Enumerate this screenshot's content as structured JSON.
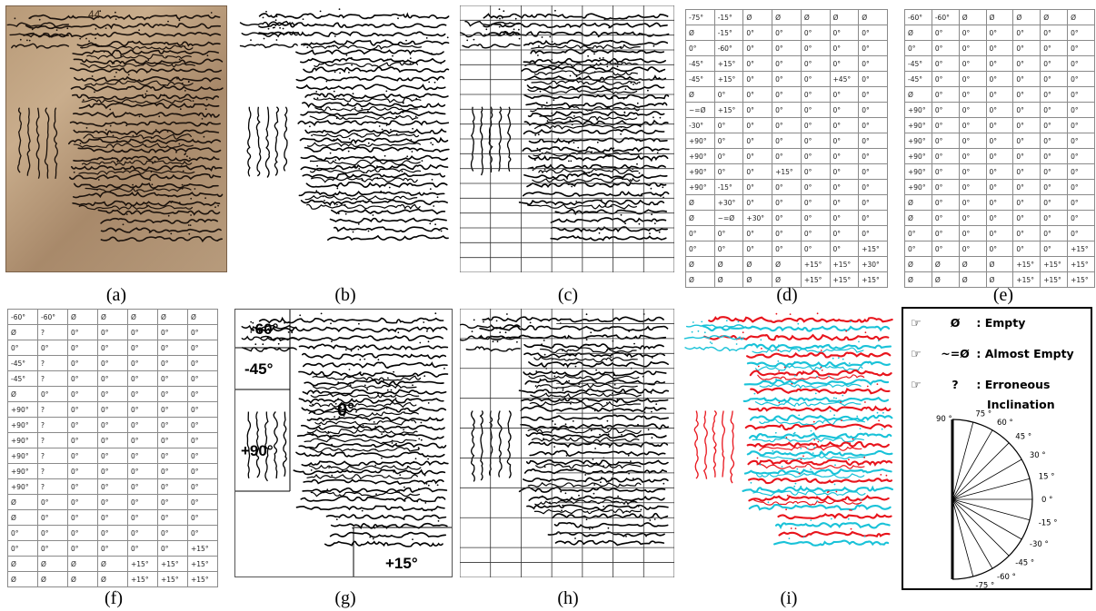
{
  "captions": [
    "(a)",
    "(b)",
    "(c)",
    "(d)",
    "(e)",
    "(f)",
    "(g)",
    "(h)",
    "(i)"
  ],
  "header_note": "44",
  "table_d": [
    [
      "-75°",
      "-15°",
      "Ø",
      "Ø",
      "Ø",
      "Ø",
      "Ø"
    ],
    [
      "Ø",
      "-15°",
      "0°",
      "0°",
      "0°",
      "0°",
      "0°"
    ],
    [
      "0°",
      "-60°",
      "0°",
      "0°",
      "0°",
      "0°",
      "0°"
    ],
    [
      "-45°",
      "+15°",
      "0°",
      "0°",
      "0°",
      "0°",
      "0°"
    ],
    [
      "-45°",
      "+15°",
      "0°",
      "0°",
      "0°",
      "+45°",
      "0°"
    ],
    [
      "Ø",
      "0°",
      "0°",
      "0°",
      "0°",
      "0°",
      "0°"
    ],
    [
      "~=Ø",
      "+15°",
      "0°",
      "0°",
      "0°",
      "0°",
      "0°"
    ],
    [
      "-30°",
      "0°",
      "0°",
      "0°",
      "0°",
      "0°",
      "0°"
    ],
    [
      "+90°",
      "0°",
      "0°",
      "0°",
      "0°",
      "0°",
      "0°"
    ],
    [
      "+90°",
      "0°",
      "0°",
      "0°",
      "0°",
      "0°",
      "0°"
    ],
    [
      "+90°",
      "0°",
      "0°",
      "+15°",
      "0°",
      "0°",
      "0°"
    ],
    [
      "+90°",
      "-15°",
      "0°",
      "0°",
      "0°",
      "0°",
      "0°"
    ],
    [
      "Ø",
      "+30°",
      "0°",
      "0°",
      "0°",
      "0°",
      "0°"
    ],
    [
      "Ø",
      "~=Ø",
      "+30°",
      "0°",
      "0°",
      "0°",
      "0°"
    ],
    [
      "0°",
      "0°",
      "0°",
      "0°",
      "0°",
      "0°",
      "0°"
    ],
    [
      "0°",
      "0°",
      "0°",
      "0°",
      "0°",
      "0°",
      "+15°"
    ],
    [
      "Ø",
      "Ø",
      "Ø",
      "Ø",
      "+15°",
      "+15°",
      "+30°"
    ],
    [
      "Ø",
      "Ø",
      "Ø",
      "Ø",
      "+15°",
      "+15°",
      "+15°"
    ]
  ],
  "table_e": [
    [
      "-60°",
      "-60°",
      "Ø",
      "Ø",
      "Ø",
      "Ø",
      "Ø"
    ],
    [
      "Ø",
      "0°",
      "0°",
      "0°",
      "0°",
      "0°",
      "0°"
    ],
    [
      "0°",
      "0°",
      "0°",
      "0°",
      "0°",
      "0°",
      "0°"
    ],
    [
      "-45°",
      "0°",
      "0°",
      "0°",
      "0°",
      "0°",
      "0°"
    ],
    [
      "-45°",
      "0°",
      "0°",
      "0°",
      "0°",
      "0°",
      "0°"
    ],
    [
      "Ø",
      "0°",
      "0°",
      "0°",
      "0°",
      "0°",
      "0°"
    ],
    [
      "+90°",
      "0°",
      "0°",
      "0°",
      "0°",
      "0°",
      "0°"
    ],
    [
      "+90°",
      "0°",
      "0°",
      "0°",
      "0°",
      "0°",
      "0°"
    ],
    [
      "+90°",
      "0°",
      "0°",
      "0°",
      "0°",
      "0°",
      "0°"
    ],
    [
      "+90°",
      "0°",
      "0°",
      "0°",
      "0°",
      "0°",
      "0°"
    ],
    [
      "+90°",
      "0°",
      "0°",
      "0°",
      "0°",
      "0°",
      "0°"
    ],
    [
      "+90°",
      "0°",
      "0°",
      "0°",
      "0°",
      "0°",
      "0°"
    ],
    [
      "Ø",
      "0°",
      "0°",
      "0°",
      "0°",
      "0°",
      "0°"
    ],
    [
      "Ø",
      "0°",
      "0°",
      "0°",
      "0°",
      "0°",
      "0°"
    ],
    [
      "0°",
      "0°",
      "0°",
      "0°",
      "0°",
      "0°",
      "0°"
    ],
    [
      "0°",
      "0°",
      "0°",
      "0°",
      "0°",
      "0°",
      "+15°"
    ],
    [
      "Ø",
      "Ø",
      "Ø",
      "Ø",
      "+15°",
      "+15°",
      "+15°"
    ],
    [
      "Ø",
      "Ø",
      "Ø",
      "Ø",
      "+15°",
      "+15°",
      "+15°"
    ]
  ],
  "table_f": [
    [
      "-60°",
      "-60°",
      "Ø",
      "Ø",
      "Ø",
      "Ø",
      "Ø"
    ],
    [
      "Ø",
      "?",
      "0°",
      "0°",
      "0°",
      "0°",
      "0°"
    ],
    [
      "0°",
      "0°",
      "0°",
      "0°",
      "0°",
      "0°",
      "0°"
    ],
    [
      "-45°",
      "?",
      "0°",
      "0°",
      "0°",
      "0°",
      "0°"
    ],
    [
      "-45°",
      "?",
      "0°",
      "0°",
      "0°",
      "0°",
      "0°"
    ],
    [
      "Ø",
      "0°",
      "0°",
      "0°",
      "0°",
      "0°",
      "0°"
    ],
    [
      "+90°",
      "?",
      "0°",
      "0°",
      "0°",
      "0°",
      "0°"
    ],
    [
      "+90°",
      "?",
      "0°",
      "0°",
      "0°",
      "0°",
      "0°"
    ],
    [
      "+90°",
      "?",
      "0°",
      "0°",
      "0°",
      "0°",
      "0°"
    ],
    [
      "+90°",
      "?",
      "0°",
      "0°",
      "0°",
      "0°",
      "0°"
    ],
    [
      "+90°",
      "?",
      "0°",
      "0°",
      "0°",
      "0°",
      "0°"
    ],
    [
      "+90°",
      "?",
      "0°",
      "0°",
      "0°",
      "0°",
      "0°"
    ],
    [
      "Ø",
      "0°",
      "0°",
      "0°",
      "0°",
      "0°",
      "0°"
    ],
    [
      "Ø",
      "0°",
      "0°",
      "0°",
      "0°",
      "0°",
      "0°"
    ],
    [
      "0°",
      "0°",
      "0°",
      "0°",
      "0°",
      "0°",
      "0°"
    ],
    [
      "0°",
      "0°",
      "0°",
      "0°",
      "0°",
      "0°",
      "+15°"
    ],
    [
      "Ø",
      "Ø",
      "Ø",
      "Ø",
      "+15°",
      "+15°",
      "+15°"
    ],
    [
      "Ø",
      "Ø",
      "Ø",
      "Ø",
      "+15°",
      "+15°",
      "+15°"
    ]
  ],
  "region_labels": [
    "-60°",
    "-45°",
    "0°",
    "+90°",
    "+15°"
  ],
  "legend": {
    "items": [
      {
        "symbol": "Ø",
        "text": ": Empty"
      },
      {
        "symbol": "~=Ø",
        "text": ": Almost Empty"
      },
      {
        "symbol": "?",
        "text": ": Erroneous"
      }
    ],
    "continuation": "Inclination",
    "angles": [
      "90 °",
      "75 °",
      "60 °",
      "45 °",
      "30 °",
      "15 °",
      "0 °",
      "-15 °",
      "-30 °",
      "-45 °",
      "-60 °",
      "-75 °"
    ],
    "angle_values": [
      90,
      75,
      60,
      45,
      30,
      15,
      0,
      -15,
      -30,
      -45,
      -60,
      -75
    ]
  },
  "colors": {
    "ink": "#111111",
    "red": "#e8141c",
    "cyan": "#19c2d8",
    "grid": "#8a8a8a"
  }
}
